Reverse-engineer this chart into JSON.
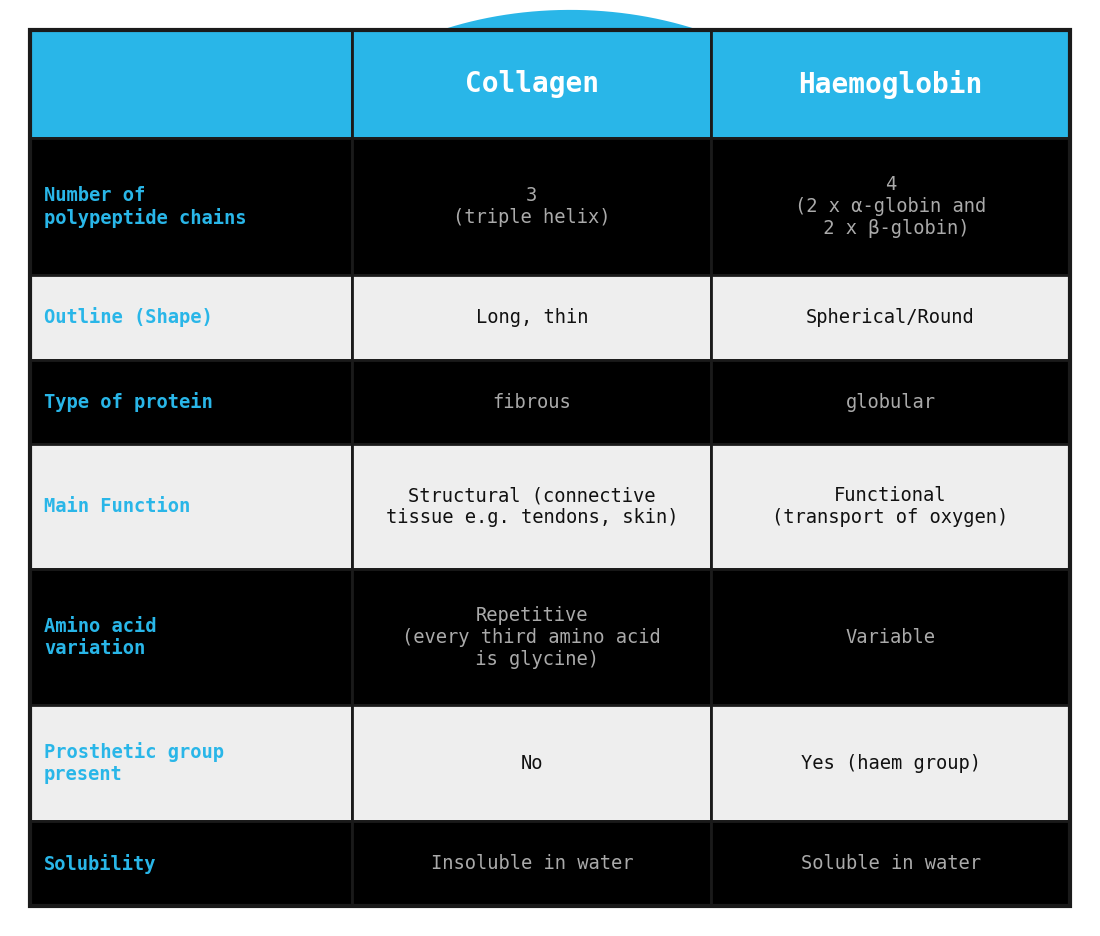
{
  "header_bg": "#29b6e8",
  "header_text_color": "#ffffff",
  "header_font_size": 20,
  "col_headers": [
    "",
    "Collagen",
    "Haemoglobin"
  ],
  "rows": [
    {
      "label": "Number of\npolypeptide chains",
      "col_bg": [
        "#000000",
        "#000000",
        "#000000"
      ],
      "collagen": "3\n(triple helix)",
      "haemoglobin": "4\n(2 x α-globin and\n 2 x β-globin)"
    },
    {
      "label": "Outline (Shape)",
      "col_bg": [
        "#eeeeee",
        "#eeeeee",
        "#eeeeee"
      ],
      "collagen": "Long, thin",
      "haemoglobin": "Spherical/Round"
    },
    {
      "label": "Type of protein",
      "col_bg": [
        "#000000",
        "#000000",
        "#000000"
      ],
      "collagen": "fibrous",
      "haemoglobin": "globular"
    },
    {
      "label": "Main Function",
      "col_bg": [
        "#eeeeee",
        "#eeeeee",
        "#eeeeee"
      ],
      "collagen": "Structural (connective\ntissue e.g. tendons, skin)",
      "haemoglobin": "Functional\n(transport of oxygen)"
    },
    {
      "label": "Amino acid\nvariation",
      "col_bg": [
        "#000000",
        "#000000",
        "#000000"
      ],
      "collagen": "Repetitive\n(every third amino acid\n is glycine)",
      "haemoglobin": "Variable"
    },
    {
      "label": "Prosthetic group\npresent",
      "col_bg": [
        "#eeeeee",
        "#eeeeee",
        "#eeeeee"
      ],
      "collagen": "No",
      "haemoglobin": "Yes (haem group)"
    },
    {
      "label": "Solubility",
      "col_bg": [
        "#000000",
        "#000000",
        "#000000"
      ],
      "collagen": "Insoluble in water",
      "haemoglobin": "Soluble in water"
    }
  ],
  "label_color_blue": "#29b6e8",
  "text_color_dark_bg": "#aaaaaa",
  "text_color_light_bg": "#111111",
  "arrow_color": "#29b6e8",
  "border_color": "#1a1a1a",
  "outer_border_color": "#1a1a1a",
  "background_color": "#ffffff"
}
